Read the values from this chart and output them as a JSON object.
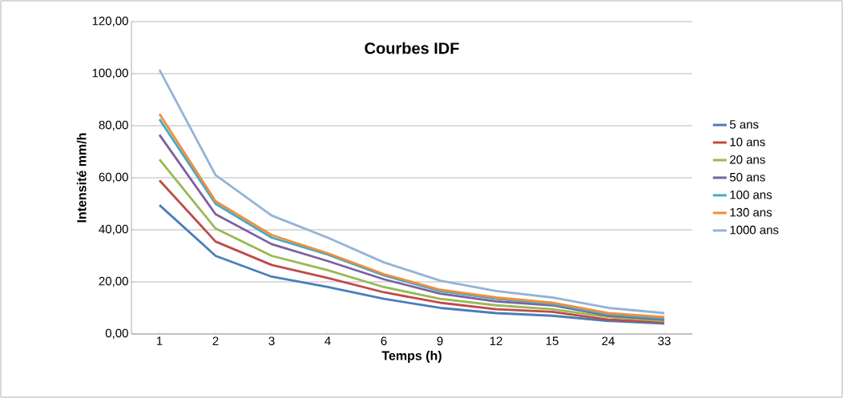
{
  "chart_data": {
    "type": "line",
    "title": "Courbes IDF",
    "xlabel": "Temps (h)",
    "ylabel": "Intensité mm/h",
    "categories": [
      "1",
      "2",
      "3",
      "4",
      "6",
      "9",
      "12",
      "15",
      "24",
      "33"
    ],
    "series": [
      {
        "name": "5 ans",
        "color": "#4a7ebb",
        "values": [
          49.5,
          30,
          22,
          18,
          13.5,
          10,
          8,
          7,
          5,
          4
        ]
      },
      {
        "name": "10 ans",
        "color": "#be4b48",
        "values": [
          59,
          35.5,
          26.5,
          21.5,
          16,
          12,
          9.5,
          8.5,
          5.5,
          4.5
        ]
      },
      {
        "name": "20 ans",
        "color": "#98b954",
        "values": [
          67,
          40.5,
          30,
          24.5,
          18,
          13.5,
          11,
          9.5,
          6.5,
          5
        ]
      },
      {
        "name": "50 ans",
        "color": "#7d60a0",
        "values": [
          76.5,
          46,
          34.5,
          28,
          21,
          15.5,
          12.5,
          11,
          7,
          5.5
        ]
      },
      {
        "name": "100 ans",
        "color": "#46aac5",
        "values": [
          82.5,
          50,
          37,
          30.5,
          22.5,
          16.5,
          13.5,
          11.5,
          7.5,
          6
        ]
      },
      {
        "name": "130 ans",
        "color": "#f28e3a",
        "values": [
          84.5,
          51,
          38,
          31,
          23,
          17,
          14,
          12,
          8,
          6.5
        ]
      },
      {
        "name": "1000 ans",
        "color": "#95b3d7",
        "values": [
          101.5,
          61,
          45.5,
          37,
          27.5,
          20.5,
          16.5,
          14,
          10,
          8
        ]
      }
    ],
    "ylim": [
      0,
      120
    ],
    "yticks": [
      {
        "value": 0,
        "label": "0,00"
      },
      {
        "value": 20,
        "label": "20,00"
      },
      {
        "value": 40,
        "label": "40,00"
      },
      {
        "value": 60,
        "label": "60,00"
      },
      {
        "value": 80,
        "label": "80,00"
      },
      {
        "value": 100,
        "label": "100,00"
      },
      {
        "value": 120,
        "label": "120,00"
      }
    ],
    "grid": "y",
    "legend": "right",
    "marker": "none",
    "line_style": "solid"
  }
}
